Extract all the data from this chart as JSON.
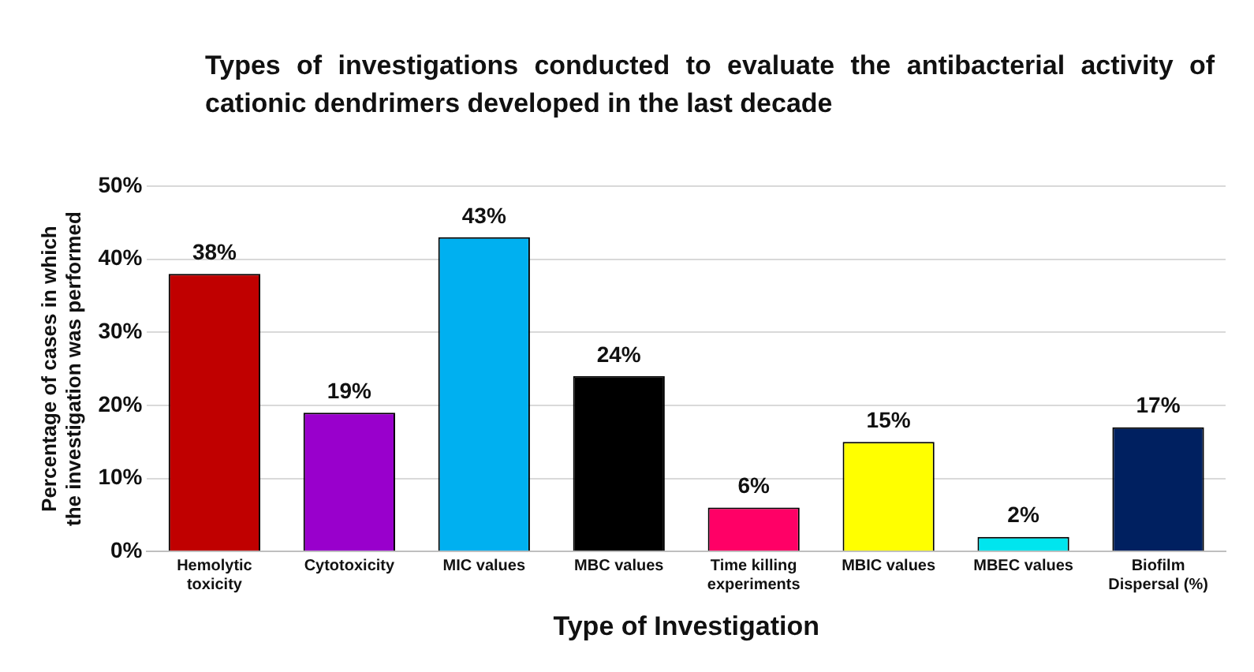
{
  "chart_data": {
    "type": "bar",
    "title": "Types of investigations conducted to evaluate the antibacterial activity of cationic dendrimers developed in the last decade",
    "xlabel": "Type of Investigation",
    "ylabel": "Percentage of cases in which the investigation was performed",
    "categories": [
      "Hemolytic toxicity",
      "Cytotoxicity",
      "MIC values",
      "MBC values",
      "Time killing experiments",
      "MBIC values",
      "MBEC values",
      "Biofilm Dispersal (%)"
    ],
    "values": [
      38,
      19,
      43,
      24,
      6,
      15,
      2,
      17
    ],
    "colors": [
      "#c00000",
      "#9900cc",
      "#00b0f0",
      "#000000",
      "#ff0066",
      "#ffff00",
      "#00e5ee",
      "#002060"
    ],
    "value_labels": [
      "38%",
      "19%",
      "43%",
      "24%",
      "6%",
      "15%",
      "2%",
      "17%"
    ],
    "ylim": [
      0,
      50
    ],
    "yticks": [
      {
        "value": 0,
        "label": "0%"
      },
      {
        "value": 10,
        "label": "10%"
      },
      {
        "value": 20,
        "label": "20%"
      },
      {
        "value": 30,
        "label": "30%"
      },
      {
        "value": 40,
        "label": "40%"
      },
      {
        "value": 50,
        "label": "50%"
      }
    ],
    "grid": "y",
    "legend": false
  }
}
